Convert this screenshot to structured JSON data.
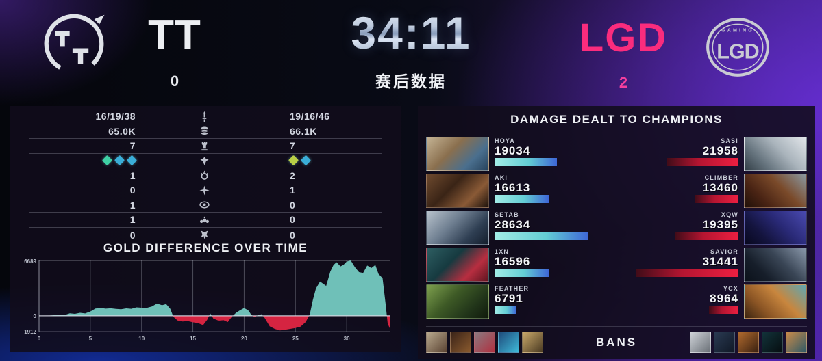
{
  "header": {
    "left_team": {
      "name": "TT",
      "score": "0",
      "logo_monogram": "TT"
    },
    "right_team": {
      "name": "LGD",
      "score": "2",
      "logo_monogram": "LGD",
      "logo_caption": "GAMING"
    },
    "timer": "34:11",
    "subtitle": "赛后数据"
  },
  "stats": {
    "rows": [
      {
        "icon": "kda-sword-icon",
        "left": "16/19/38",
        "right": "19/16/46"
      },
      {
        "icon": "gold-coins-icon",
        "left": "65.0K",
        "right": "66.1K"
      },
      {
        "icon": "tower-icon",
        "left": "7",
        "right": "7"
      },
      {
        "icon": "dragon-icon",
        "left_drakes": [
          "#3fd0a4",
          "#3aaed8",
          "#3aaed8"
        ],
        "right_drakes": [
          "#b9cf46",
          "#3aaed8"
        ]
      },
      {
        "icon": "baron-icon",
        "left": "1",
        "right": "2"
      },
      {
        "icon": "elder-dragon-icon",
        "left": "0",
        "right": "1"
      },
      {
        "icon": "rift-herald-icon",
        "left": "1",
        "right": "0"
      },
      {
        "icon": "void-grubs-icon",
        "left": "1",
        "right": "0"
      },
      {
        "icon": "atakhan-icon",
        "left": "0",
        "right": "0"
      }
    ]
  },
  "chart_data": {
    "type": "area",
    "title": "GOLD DIFFERENCE OVER TIME",
    "xlabel": "",
    "ylabel": "",
    "xlim": [
      0,
      34.2
    ],
    "ylim": [
      -1912,
      6689
    ],
    "x_ticks": [
      0,
      5,
      10,
      15,
      20,
      25,
      30
    ],
    "y_ticks": [
      6689,
      0,
      -1912
    ],
    "y_tick_labels": [
      "6689",
      "0",
      "1912"
    ],
    "grid": true,
    "legend": "none",
    "positive_color": "#6fc0b8",
    "negative_color": "#d52441",
    "series_name": "gold-difference",
    "points": [
      [
        0,
        0
      ],
      [
        1,
        30
      ],
      [
        2,
        120
      ],
      [
        2.5,
        90
      ],
      [
        3,
        300
      ],
      [
        3.5,
        240
      ],
      [
        4,
        360
      ],
      [
        4.5,
        290
      ],
      [
        5,
        520
      ],
      [
        5.5,
        880
      ],
      [
        6,
        950
      ],
      [
        6.5,
        870
      ],
      [
        7,
        910
      ],
      [
        7.5,
        830
      ],
      [
        8,
        790
      ],
      [
        8.5,
        900
      ],
      [
        9,
        850
      ],
      [
        9.5,
        1020
      ],
      [
        10,
        980
      ],
      [
        10.5,
        960
      ],
      [
        11,
        1120
      ],
      [
        11.5,
        1480
      ],
      [
        12,
        1280
      ],
      [
        12.4,
        1420
      ],
      [
        12.8,
        850
      ],
      [
        13.1,
        -120
      ],
      [
        13.5,
        -560
      ],
      [
        14,
        -700
      ],
      [
        14.5,
        -640
      ],
      [
        15,
        -790
      ],
      [
        15.5,
        -880
      ],
      [
        16,
        -1130
      ],
      [
        16.4,
        -480
      ],
      [
        16.7,
        280
      ],
      [
        17,
        -340
      ],
      [
        17.5,
        -590
      ],
      [
        18,
        -540
      ],
      [
        18.4,
        -760
      ],
      [
        18.8,
        -120
      ],
      [
        19.2,
        350
      ],
      [
        19.6,
        680
      ],
      [
        20,
        940
      ],
      [
        20.4,
        660
      ],
      [
        20.7,
        120
      ],
      [
        21,
        -140
      ],
      [
        21.4,
        90
      ],
      [
        21.7,
        190
      ],
      [
        22,
        -260
      ],
      [
        22.5,
        -1280
      ],
      [
        23,
        -1590
      ],
      [
        23.5,
        -1760
      ],
      [
        24,
        -1690
      ],
      [
        24.5,
        -1580
      ],
      [
        25,
        -1480
      ],
      [
        25.5,
        -1320
      ],
      [
        26,
        -760
      ],
      [
        26.4,
        150
      ],
      [
        26.7,
        1900
      ],
      [
        27,
        3300
      ],
      [
        27.4,
        4150
      ],
      [
        27.7,
        3880
      ],
      [
        28,
        3620
      ],
      [
        28.4,
        5350
      ],
      [
        28.7,
        6120
      ],
      [
        29,
        6480
      ],
      [
        29.4,
        5980
      ],
      [
        29.7,
        6180
      ],
      [
        30,
        6560
      ],
      [
        30.4,
        6689
      ],
      [
        30.8,
        5880
      ],
      [
        31.2,
        5280
      ],
      [
        31.6,
        5180
      ],
      [
        32,
        6080
      ],
      [
        32.4,
        5780
      ],
      [
        32.8,
        6150
      ],
      [
        33.1,
        5080
      ],
      [
        33.5,
        4550
      ],
      [
        33.8,
        1400
      ],
      [
        34,
        -950
      ],
      [
        34.2,
        -1500
      ]
    ]
  },
  "damage": {
    "title": "DAMAGE DEALT TO CHAMPIONS",
    "max_value": 31441,
    "left_players": [
      {
        "name": "HOYA",
        "value": 19034,
        "portrait": [
          "#c4b394",
          "#8a6f4e",
          "#4a6f8e",
          "#27425c"
        ]
      },
      {
        "name": "AKI",
        "value": 16613,
        "portrait": [
          "#6e4a2e",
          "#3a2416",
          "#8a5a36",
          "#1e130c"
        ]
      },
      {
        "name": "SETAB",
        "value": 28634,
        "portrait": [
          "#b8c2cc",
          "#6e7e90",
          "#2e3e52",
          "#141e2c"
        ]
      },
      {
        "name": "1XN",
        "value": 16596,
        "portrait": [
          "#2e5e62",
          "#163a40",
          "#b82e40",
          "#5e1420"
        ]
      },
      {
        "name": "FEATHER",
        "value": 6791,
        "portrait": [
          "#7ea04e",
          "#3e5a26",
          "#22361a",
          "#101a0c"
        ]
      }
    ],
    "right_players": [
      {
        "name": "SASI",
        "value": 21958,
        "portrait": [
          "#e2e6ea",
          "#aab4bc",
          "#66747e",
          "#323e46"
        ]
      },
      {
        "name": "CLIMBER",
        "value": 13460,
        "portrait": [
          "#8a98a2",
          "#7a4a2a",
          "#4a2414",
          "#201008"
        ]
      },
      {
        "name": "XQW",
        "value": 19395,
        "portrait": [
          "#4a4ab0",
          "#2a2a78",
          "#14143e",
          "#08081e"
        ]
      },
      {
        "name": "SAVIOR",
        "value": 31441,
        "portrait": [
          "#8a98aa",
          "#3a4656",
          "#161e2a",
          "#0b111a"
        ]
      },
      {
        "name": "YCX",
        "value": 8964,
        "portrait": [
          "#5ea8b4",
          "#c8863e",
          "#8a5424",
          "#3a2410"
        ]
      }
    ]
  },
  "bans": {
    "label": "BANS",
    "left_icons": [
      [
        "#b9a98e",
        "#5a4332"
      ],
      [
        "#3a2318",
        "#8a5a2e"
      ],
      [
        "#8a7a80",
        "#b03040"
      ],
      [
        "#1e4a7a",
        "#3fb9d8"
      ],
      [
        "#c9a86a",
        "#4a3a22"
      ]
    ],
    "right_icons": [
      [
        "#cfd3d8",
        "#6a7077"
      ],
      [
        "#2a3a52",
        "#101826"
      ],
      [
        "#b06a2e",
        "#3a2010"
      ],
      [
        "#12333a",
        "#060d10"
      ],
      [
        "#c98a4a",
        "#2e5a66"
      ]
    ]
  }
}
